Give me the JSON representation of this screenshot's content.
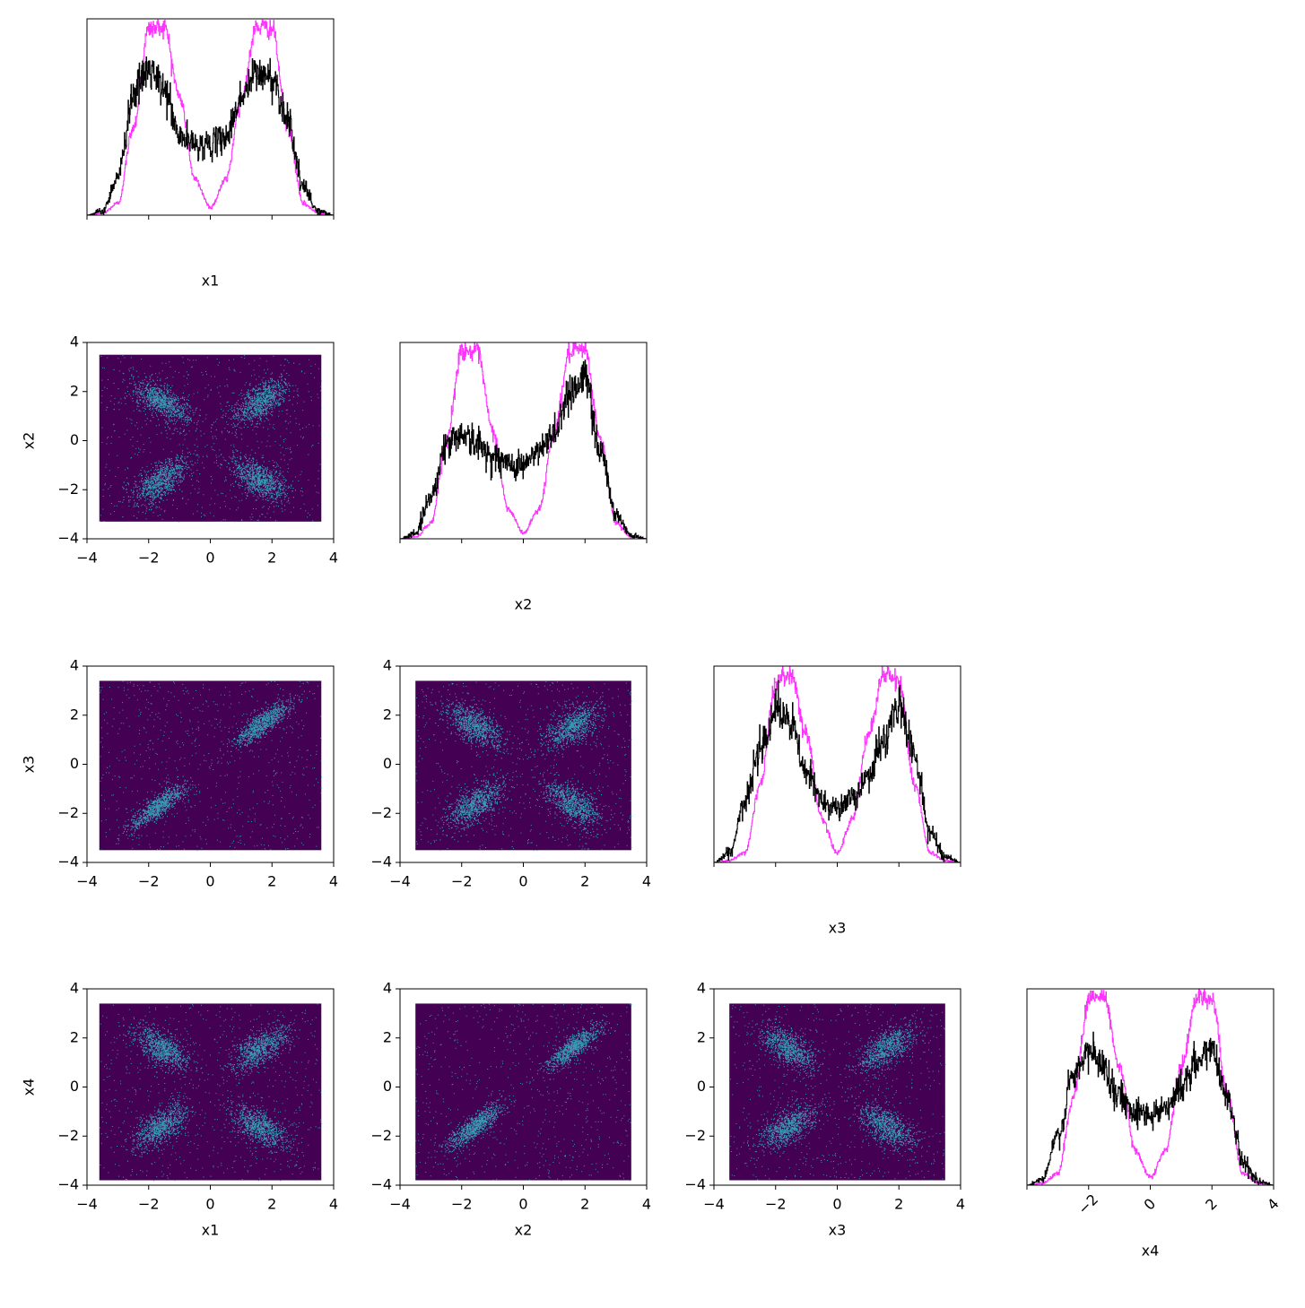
{
  "chart_data": {
    "type": "corner",
    "variables": [
      "x1",
      "x2",
      "x3",
      "x4"
    ],
    "axis_range": [
      -4,
      4
    ],
    "ticks": [
      -4,
      -2,
      0,
      2,
      4
    ],
    "tick_labels": [
      "−4",
      "−2",
      "0",
      "2",
      "4"
    ],
    "diag_tick_labels": [
      "−2",
      "0",
      "2",
      "4"
    ],
    "colors": {
      "hist_black": "#000000",
      "hist_magenta": "#ff33ff",
      "scatter_bg": "#440154",
      "scatter_dot": "#35b7c4"
    },
    "histograms": [
      {
        "variable": "x1",
        "series": [
          {
            "name": "",
            "color": "#000000",
            "x": [
              -4,
              -3.5,
              -3,
              -2.5,
              -2,
              -1.5,
              -1,
              -0.5,
              0,
              0.5,
              1,
              1.5,
              2,
              2.5,
              3,
              3.5,
              4
            ],
            "y": [
              0,
              0.02,
              0.2,
              0.62,
              0.74,
              0.64,
              0.4,
              0.36,
              0.36,
              0.4,
              0.6,
              0.72,
              0.7,
              0.5,
              0.14,
              0.02,
              0
            ]
          },
          {
            "name": "",
            "color": "#ff33ff",
            "x": [
              -4,
              -3.5,
              -3,
              -2.5,
              -2,
              -1.5,
              -1,
              -0.5,
              0,
              0.5,
              1,
              1.5,
              2,
              2.5,
              3,
              3.5,
              4
            ],
            "y": [
              0,
              0.01,
              0.06,
              0.45,
              0.95,
              0.96,
              0.6,
              0.18,
              0.04,
              0.18,
              0.6,
              0.96,
              0.95,
              0.45,
              0.06,
              0.01,
              0
            ]
          }
        ]
      },
      {
        "variable": "x2",
        "series": [
          {
            "name": "",
            "color": "#000000",
            "x": [
              -4,
              -3.5,
              -3,
              -2.5,
              -2,
              -1.5,
              -1,
              -0.5,
              0,
              0.5,
              1,
              1.5,
              2,
              2.5,
              3,
              3.5,
              4
            ],
            "y": [
              0,
              0.03,
              0.22,
              0.48,
              0.54,
              0.48,
              0.42,
              0.38,
              0.38,
              0.44,
              0.55,
              0.75,
              0.82,
              0.45,
              0.12,
              0.02,
              0
            ]
          },
          {
            "name": "",
            "color": "#ff33ff",
            "x": [
              -4,
              -3.5,
              -3,
              -2.5,
              -2,
              -1.5,
              -1,
              -0.5,
              0,
              0.5,
              1,
              1.5,
              2,
              2.5,
              3,
              3.5,
              4
            ],
            "y": [
              0,
              0.01,
              0.08,
              0.5,
              0.96,
              0.95,
              0.55,
              0.15,
              0.03,
              0.15,
              0.55,
              0.95,
              0.96,
              0.5,
              0.08,
              0.01,
              0
            ]
          }
        ]
      },
      {
        "variable": "x3",
        "series": [
          {
            "name": "",
            "color": "#000000",
            "x": [
              -4,
              -3.5,
              -3,
              -2.5,
              -2,
              -1.5,
              -1,
              -0.5,
              0,
              0.5,
              1,
              1.5,
              2,
              2.5,
              3,
              3.5,
              4
            ],
            "y": [
              0,
              0.05,
              0.3,
              0.6,
              0.78,
              0.7,
              0.45,
              0.32,
              0.28,
              0.32,
              0.45,
              0.62,
              0.8,
              0.55,
              0.15,
              0.03,
              0
            ]
          },
          {
            "name": "",
            "color": "#ff33ff",
            "x": [
              -4,
              -3.5,
              -3,
              -2.5,
              -2,
              -1.5,
              -1,
              -0.5,
              0,
              0.5,
              1,
              1.5,
              2,
              2.5,
              3,
              3.5,
              4
            ],
            "y": [
              0,
              0.01,
              0.05,
              0.4,
              0.92,
              0.96,
              0.65,
              0.22,
              0.05,
              0.22,
              0.65,
              0.96,
              0.92,
              0.4,
              0.05,
              0.01,
              0
            ]
          }
        ]
      },
      {
        "variable": "x4",
        "series": [
          {
            "name": "",
            "color": "#000000",
            "x": [
              -4,
              -3.5,
              -3,
              -2.5,
              -2,
              -1.5,
              -1,
              -0.5,
              0,
              0.5,
              1,
              1.5,
              2,
              2.5,
              3,
              3.5,
              4
            ],
            "y": [
              0,
              0.03,
              0.25,
              0.55,
              0.68,
              0.6,
              0.45,
              0.38,
              0.36,
              0.4,
              0.5,
              0.62,
              0.7,
              0.45,
              0.12,
              0.02,
              0
            ]
          },
          {
            "name": "",
            "color": "#ff33ff",
            "x": [
              -4,
              -3.5,
              -3,
              -2.5,
              -2,
              -1.5,
              -1,
              -0.5,
              0,
              0.5,
              1,
              1.5,
              2,
              2.5,
              3,
              3.5,
              4
            ],
            "y": [
              0,
              0.01,
              0.06,
              0.45,
              0.95,
              0.96,
              0.6,
              0.18,
              0.04,
              0.18,
              0.6,
              0.96,
              0.95,
              0.45,
              0.06,
              0.01,
              0
            ]
          }
        ]
      }
    ],
    "scatter_pairs": [
      {
        "x_var": "x1",
        "y_var": "x2",
        "extent": [
          -3.6,
          3.6,
          -3.3,
          3.5
        ],
        "clusters": [
          {
            "cx": -1.6,
            "cy": 1.6,
            "corr": -0.6
          },
          {
            "cx": 1.6,
            "cy": 1.6,
            "corr": 0.6
          },
          {
            "cx": -1.6,
            "cy": -1.6,
            "corr": 0.6
          },
          {
            "cx": 1.6,
            "cy": -1.6,
            "corr": -0.6
          }
        ]
      },
      {
        "x_var": "x1",
        "y_var": "x3",
        "extent": [
          -3.6,
          3.6,
          -3.5,
          3.4
        ],
        "clusters": [
          {
            "cx": 1.7,
            "cy": 1.7,
            "corr": 0.85
          },
          {
            "cx": -1.7,
            "cy": -1.7,
            "corr": 0.85
          }
        ]
      },
      {
        "x_var": "x2",
        "y_var": "x3",
        "extent": [
          -3.5,
          3.5,
          -3.5,
          3.4
        ],
        "clusters": [
          {
            "cx": -1.6,
            "cy": 1.6,
            "corr": -0.6
          },
          {
            "cx": 1.6,
            "cy": 1.6,
            "corr": 0.6
          },
          {
            "cx": -1.6,
            "cy": -1.6,
            "corr": 0.6
          },
          {
            "cx": 1.6,
            "cy": -1.6,
            "corr": -0.6
          }
        ]
      },
      {
        "x_var": "x1",
        "y_var": "x4",
        "extent": [
          -3.6,
          3.6,
          -3.8,
          3.4
        ],
        "clusters": [
          {
            "cx": -1.6,
            "cy": 1.6,
            "corr": -0.6
          },
          {
            "cx": 1.6,
            "cy": 1.6,
            "corr": 0.6
          },
          {
            "cx": -1.6,
            "cy": -1.6,
            "corr": 0.6
          },
          {
            "cx": 1.6,
            "cy": -1.6,
            "corr": -0.6
          }
        ]
      },
      {
        "x_var": "x2",
        "y_var": "x4",
        "extent": [
          -3.5,
          3.5,
          -3.8,
          3.4
        ],
        "clusters": [
          {
            "cx": 1.6,
            "cy": 1.6,
            "corr": 0.85
          },
          {
            "cx": -1.6,
            "cy": -1.6,
            "corr": 0.85
          }
        ]
      },
      {
        "x_var": "x3",
        "y_var": "x4",
        "extent": [
          -3.5,
          3.5,
          -3.8,
          3.4
        ],
        "clusters": [
          {
            "cx": -1.6,
            "cy": 1.6,
            "corr": -0.6
          },
          {
            "cx": 1.6,
            "cy": 1.6,
            "corr": 0.6
          },
          {
            "cx": -1.6,
            "cy": -1.6,
            "corr": 0.6
          },
          {
            "cx": 1.6,
            "cy": -1.6,
            "corr": -0.6
          }
        ]
      }
    ]
  }
}
